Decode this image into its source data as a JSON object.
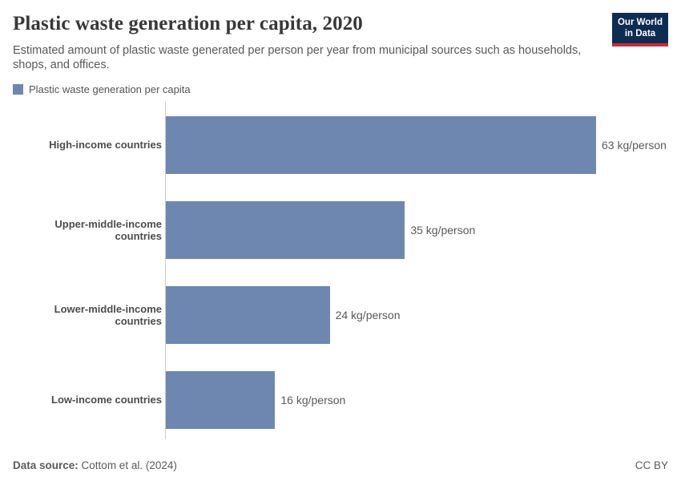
{
  "header": {
    "title": "Plastic waste generation per capita, 2020",
    "subtitle": "Estimated amount of plastic waste generated per person per year from municipal sources such as households, shops, and offices.",
    "logo": {
      "line1": "Our World",
      "line2": "in Data"
    }
  },
  "legend": {
    "label": "Plastic waste generation per capita"
  },
  "chart_data": {
    "type": "bar",
    "orientation": "horizontal",
    "title": "Plastic waste generation per capita, 2020",
    "categories": [
      "High-income countries",
      "Upper-middle-income countries",
      "Lower-middle-income countries",
      "Low-income countries"
    ],
    "values": [
      63,
      35,
      24,
      16
    ],
    "value_labels": [
      "63 kg/person",
      "35 kg/person",
      "24 kg/person",
      "16 kg/person"
    ],
    "unit": "kg/person",
    "xlim": [
      0,
      63
    ],
    "grid": false,
    "legend_position": "top-left",
    "bar_color": "#6d87b1"
  },
  "footer": {
    "source_label": "Data source:",
    "source_value": "Cottom et al. (2024)",
    "license": "CC BY"
  },
  "colors": {
    "bar": "#6d87b1",
    "title_text": "#383838",
    "body_text": "#595959",
    "axis_line": "#cccccc",
    "logo_background": "#0d2c54",
    "logo_accent": "#cc2a36"
  }
}
